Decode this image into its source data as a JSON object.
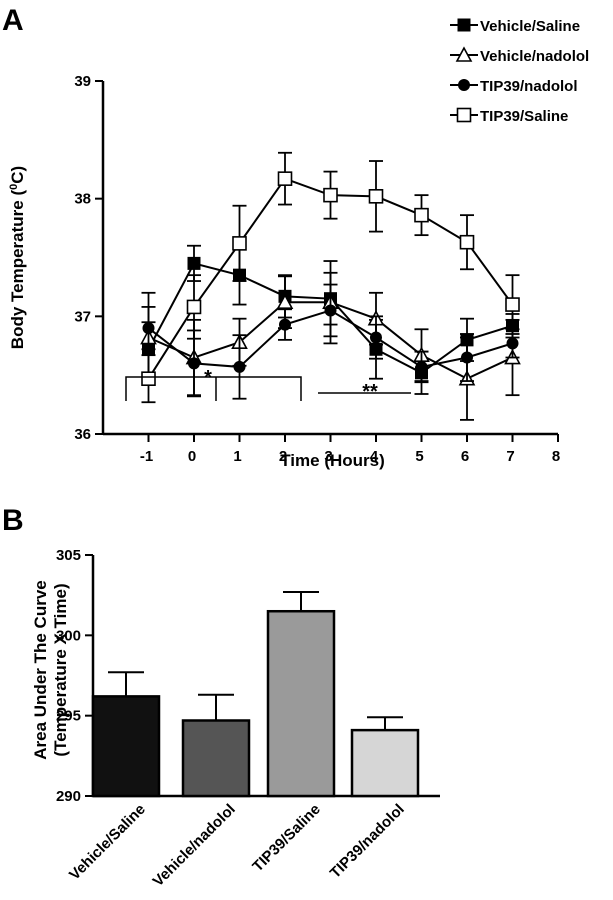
{
  "panels": {
    "a": "A",
    "b": "B"
  },
  "chart_data": [
    {
      "type": "line",
      "panel": "A",
      "xlabel": "Time (Hours)",
      "ylabel_prefix": "Body Temperature (",
      "ylabel_sup": "0",
      "ylabel_suffix": "C)",
      "xlim": [
        -2,
        8
      ],
      "ylim": [
        36,
        39
      ],
      "x_ticks": [
        -1,
        0,
        1,
        2,
        3,
        4,
        5,
        6,
        7,
        8
      ],
      "y_ticks": [
        36,
        37,
        38,
        39
      ],
      "x": [
        -1,
        0,
        1,
        2,
        3,
        4,
        5,
        6,
        7
      ],
      "legend_position": "top-right",
      "series": [
        {
          "name": "Vehicle/Saline",
          "marker": "square-filled",
          "values": [
            36.72,
            37.45,
            37.35,
            37.17,
            37.15,
            36.72,
            36.52,
            36.8,
            36.92
          ],
          "errors": [
            0.23,
            0.15,
            0.25,
            0.18,
            0.22,
            0.25,
            0.18,
            0.18,
            0.1
          ]
        },
        {
          "name": "Vehicle/nadolol",
          "marker": "triangle-open",
          "values": [
            36.82,
            36.65,
            36.78,
            37.12,
            37.12,
            36.98,
            36.67,
            36.47,
            36.65
          ],
          "errors": [
            0.38,
            0.32,
            0.2,
            0.22,
            0.35,
            0.22,
            0.22,
            0.35,
            0.32
          ]
        },
        {
          "name": "TIP39/nadolol",
          "marker": "circle-filled",
          "values": [
            36.9,
            36.6,
            36.57,
            36.93,
            37.05,
            36.82,
            36.57,
            36.65,
            36.77
          ],
          "errors": [
            0.18,
            0.28,
            0.27,
            0.13,
            0.22,
            0.18,
            0.13,
            0.2,
            0.12
          ]
        },
        {
          "name": "TIP39/Saline",
          "marker": "square-open",
          "values": [
            36.47,
            37.08,
            37.62,
            38.17,
            38.03,
            38.02,
            37.86,
            37.63,
            37.1
          ],
          "errors": [
            0.2,
            0.27,
            0.32,
            0.22,
            0.2,
            0.3,
            0.17,
            0.23,
            0.25
          ]
        }
      ]
    },
    {
      "type": "bar",
      "panel": "B",
      "ylabel_line1": "Area Under The Curve",
      "ylabel_line2": "(Temperature X Time)",
      "ylim": [
        290,
        305
      ],
      "y_ticks": [
        290,
        295,
        300,
        305
      ],
      "categories": [
        "Vehicle/Saline",
        "Vehicle/nadolol",
        "TIP39/Saline",
        "TIP39/nadolol"
      ],
      "values": [
        296.2,
        294.7,
        301.5,
        294.1
      ],
      "errors": [
        1.5,
        1.6,
        1.2,
        0.8
      ],
      "colors": [
        "#111111",
        "#555555",
        "#9a9a9a",
        "#d6d6d6"
      ],
      "significance": [
        {
          "label": "*",
          "compares": "Vehicle/Saline + Vehicle/nadolol vs TIP39/Saline"
        },
        {
          "label": "**",
          "compares": "TIP39/Saline vs TIP39/nadolol"
        }
      ]
    }
  ]
}
